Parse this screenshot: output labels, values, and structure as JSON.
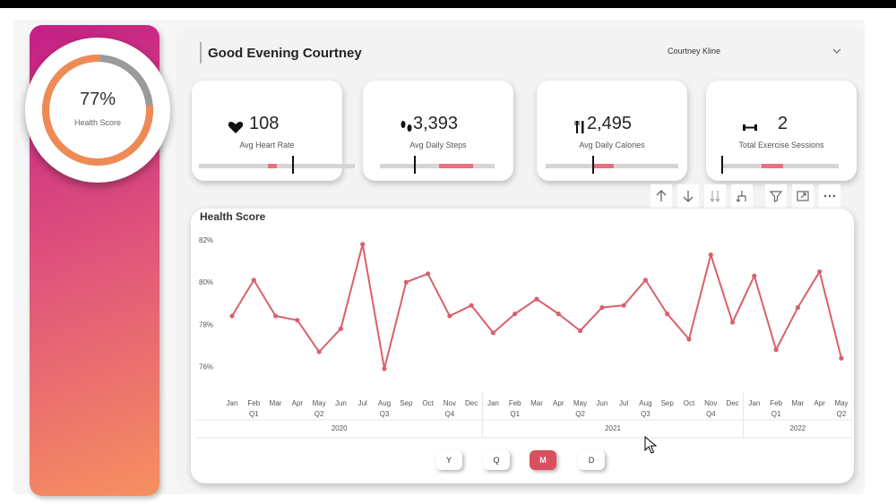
{
  "sidebar": {
    "gauge": {
      "value_text": "77%",
      "label": "Health Score",
      "fraction": 0.77,
      "track_color": "#9a9a9a",
      "fill_color": "#f08a55"
    }
  },
  "header": {
    "greeting": "Good Evening Courtney",
    "user_select": {
      "value": "Courtney Kline",
      "icon": "chevron-down-icon"
    }
  },
  "kpis": [
    {
      "value": "108",
      "label": "Avg Heart Rate",
      "icon": "heart-icon"
    },
    {
      "value": "3,393",
      "label": "Avg Daily Steps",
      "icon": "footprints-icon"
    },
    {
      "value": "2,495",
      "label": "Avg Daily Calories",
      "icon": "fork-knife-icon"
    },
    {
      "value": "2",
      "label": "Total Exercise Sessions",
      "icon": "dumbbell-icon"
    }
  ],
  "toolbar": [
    "arrow-up-icon",
    "arrow-down-icon",
    "double-arrow-down-icon",
    "expand-hierarchy-icon",
    "filter-icon",
    "focus-mode-icon",
    "more-options-icon"
  ],
  "chart_data": {
    "type": "line",
    "title": "Health Score",
    "yticks": [
      "82%",
      "80%",
      "78%",
      "76%"
    ],
    "ylim": [
      75.6,
      82.3
    ],
    "x": [
      "Jan",
      "Feb",
      "Mar",
      "Apr",
      "May",
      "Jun",
      "Jul",
      "Aug",
      "Sep",
      "Oct",
      "Nov",
      "Dec",
      "Jan",
      "Feb",
      "Mar",
      "Apr",
      "May",
      "Jun",
      "Jul",
      "Aug",
      "Sep",
      "Oct",
      "Nov",
      "Dec",
      "Jan",
      "Feb",
      "Mar",
      "Apr",
      "May"
    ],
    "quarters": [
      {
        "label": "Q1",
        "month_index": 1
      },
      {
        "label": "Q2",
        "month_index": 4
      },
      {
        "label": "Q3",
        "month_index": 7
      },
      {
        "label": "Q4",
        "month_index": 10
      },
      {
        "label": "Q1",
        "month_index": 13
      },
      {
        "label": "Q2",
        "month_index": 16
      },
      {
        "label": "Q3",
        "month_index": 19
      },
      {
        "label": "Q4",
        "month_index": 22
      },
      {
        "label": "Q1",
        "month_index": 25
      },
      {
        "label": "Q2",
        "month_index": 28
      }
    ],
    "years": [
      {
        "label": "2020",
        "start": 0,
        "end": 11
      },
      {
        "label": "2021",
        "start": 12,
        "end": 23
      },
      {
        "label": "2022",
        "start": 24,
        "end": 28
      }
    ],
    "series": [
      {
        "values": [
          78.4,
          80.1,
          78.4,
          78.2,
          76.7,
          77.8,
          81.8,
          75.9,
          80.0,
          80.4,
          78.4,
          78.9,
          77.6,
          78.5,
          79.2,
          78.5,
          77.7,
          78.8,
          78.9,
          80.1,
          78.5,
          77.3,
          81.3,
          78.1,
          80.3,
          76.8,
          78.8,
          80.5,
          76.4
        ]
      }
    ],
    "line_color": "#d9606c",
    "grid": false
  },
  "granularity": {
    "buttons": [
      "Y",
      "Q",
      "M",
      "D"
    ],
    "active": "M"
  }
}
